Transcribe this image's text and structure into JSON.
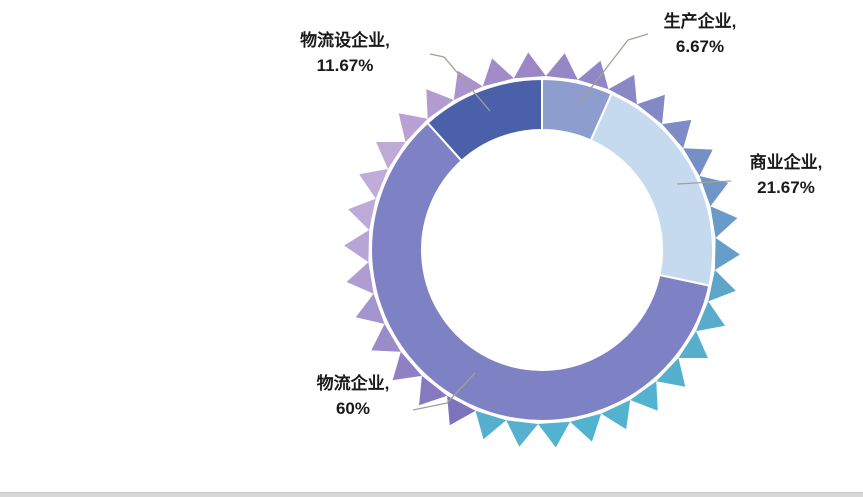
{
  "chart_data": {
    "type": "pie",
    "subtype": "donut-with-starburst-ring",
    "title": "",
    "categories": [
      "生产企业",
      "商业企业",
      "物流企业",
      "物流设企业"
    ],
    "values": [
      6.67,
      21.67,
      60,
      11.67
    ],
    "unit": "%",
    "slice_colors": [
      "#8d9dce",
      "#c5daee",
      "#7e82c4",
      "#4a60a8"
    ],
    "start_angle_deg": 0,
    "direction": "clockwise",
    "inner_radius_ratio": 0.7,
    "legend": "none",
    "labels": [
      {
        "name": "生产企业,",
        "value": "6.67%"
      },
      {
        "name": "商业企业,",
        "value": "21.67%"
      },
      {
        "name": "物流企业,",
        "value": "60%"
      },
      {
        "name": "物流设企业,",
        "value": "11.67%"
      }
    ],
    "label_text_color": "#1a1a1a",
    "leader_line_color": "#a3a096",
    "slice_border_color": "#ffffff",
    "starburst_ring_colors": [
      "#9c86c5",
      "#9586c5",
      "#9087c6",
      "#8a87c6",
      "#8388c7",
      "#7d8bc7",
      "#7690c7",
      "#7095c7",
      "#6a9ac8",
      "#659fc9",
      "#5fa5ca",
      "#5aaacc",
      "#57aecd",
      "#55b0ce",
      "#53b2cf",
      "#52b3d0",
      "#52b3d0",
      "#53b2cf",
      "#55b1cf",
      "#54b0ce",
      "#7d73bd",
      "#8579c0",
      "#8f80c5",
      "#9a8bc9",
      "#a494cd",
      "#af9dd2",
      "#b7a5d5",
      "#bdaad7",
      "#c0acd8",
      "#bfaad6",
      "#b9a2d3",
      "#b29bd0",
      "#aa93cc",
      "#a28bc8"
    ]
  },
  "footer": {
    "divider_color": "#d8d8d8"
  }
}
